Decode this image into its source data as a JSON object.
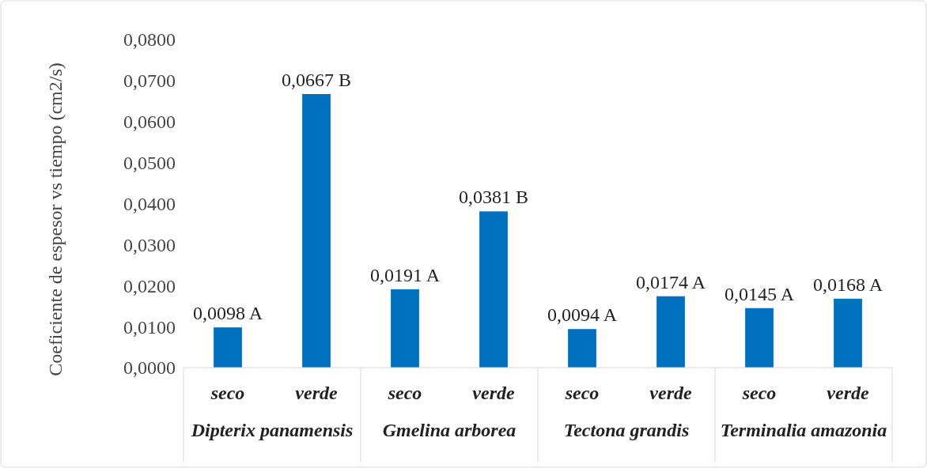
{
  "chart_data": {
    "type": "bar",
    "ylabel": "Coeficiente de espesor vs tiempo (cm2/s)",
    "categories": [
      "seco",
      "verde",
      "seco",
      "verde",
      "seco",
      "verde",
      "seco",
      "verde"
    ],
    "values": [
      0.0098,
      0.0667,
      0.0191,
      0.0381,
      0.0094,
      0.0174,
      0.0145,
      0.0168
    ],
    "value_labels": [
      "0,0098 A",
      "0,0667 B",
      "0,0191 A",
      "0,0381 B",
      "0,0094 A",
      "0,0174 A",
      "0,0145 A",
      "0,0168 A"
    ],
    "color": "#0070c0",
    "annotations": [
      "Dipterix panamensis",
      "Gmelina arborea",
      "Tectona grandis",
      "Terminalia amazonia"
    ],
    "ylim": [
      0,
      0.08
    ],
    "yticks": [
      {
        "value": 0,
        "label": "0,0000"
      },
      {
        "value": 0.01,
        "label": "0,0100"
      },
      {
        "value": 0.02,
        "label": "0,0200"
      },
      {
        "value": 0.03,
        "label": "0,0300"
      },
      {
        "value": 0.04,
        "label": "0,0400"
      },
      {
        "value": 0.05,
        "label": "0,0500"
      },
      {
        "value": 0.06,
        "label": "0,0600"
      },
      {
        "value": 0.07,
        "label": "0,0700"
      },
      {
        "value": 0.08,
        "label": "0,0800"
      }
    ],
    "grid": false
  }
}
